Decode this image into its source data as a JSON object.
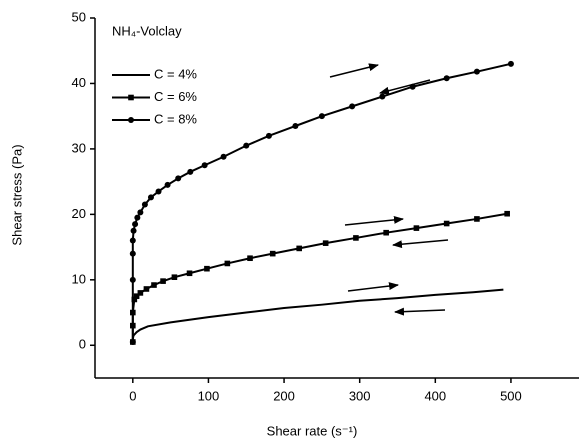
{
  "chart_data": {
    "type": "line",
    "annotation": "NH₄-Volclay",
    "x_label": "Shear rate (s⁻¹)",
    "y_label": "Shear stress (Pa)",
    "xlim": [
      -50,
      590
    ],
    "xticks": [
      0,
      100,
      200,
      300,
      400,
      500
    ],
    "ylim": [
      -5,
      50
    ],
    "yticks": [
      0,
      10,
      20,
      30,
      40,
      50
    ],
    "legend": "upper-left",
    "series": [
      {
        "name": "C = 4%",
        "color": "#000000",
        "marker": "none",
        "x": [
          0,
          0,
          1,
          5,
          10,
          20,
          50,
          100,
          150,
          200,
          250,
          300,
          350,
          400,
          450,
          490
        ],
        "values": [
          0.3,
          1,
          1.5,
          2,
          2.4,
          2.9,
          3.5,
          4.3,
          5.0,
          5.7,
          6.2,
          6.8,
          7.2,
          7.7,
          8.1,
          8.5
        ]
      },
      {
        "name": "C = 6%",
        "color": "#000000",
        "marker": "square",
        "x": [
          0,
          0,
          0,
          2,
          5,
          10,
          18,
          28,
          40,
          55,
          75,
          98,
          125,
          155,
          185,
          220,
          255,
          295,
          335,
          375,
          415,
          455,
          495
        ],
        "values": [
          0.5,
          3,
          5,
          7,
          7.5,
          8,
          8.6,
          9.2,
          9.8,
          10.4,
          11,
          11.7,
          12.5,
          13.3,
          14,
          14.8,
          15.6,
          16.4,
          17.2,
          17.9,
          18.6,
          19.3,
          20.1
        ]
      },
      {
        "name": "C = 8%",
        "color": "#000000",
        "marker": "circle",
        "x": [
          0,
          0,
          0,
          0,
          1,
          3,
          6,
          10,
          16,
          24,
          34,
          46,
          60,
          76,
          95,
          120,
          150,
          180,
          215,
          250,
          290,
          330,
          370,
          415,
          455,
          500
        ],
        "values": [
          0.5,
          10,
          14,
          16,
          17.5,
          18.5,
          19.5,
          20.3,
          21.5,
          22.6,
          23.5,
          24.5,
          25.5,
          26.5,
          27.5,
          28.8,
          30.5,
          32,
          33.5,
          35,
          36.5,
          38,
          39.5,
          40.8,
          41.8,
          43
        ]
      }
    ]
  }
}
